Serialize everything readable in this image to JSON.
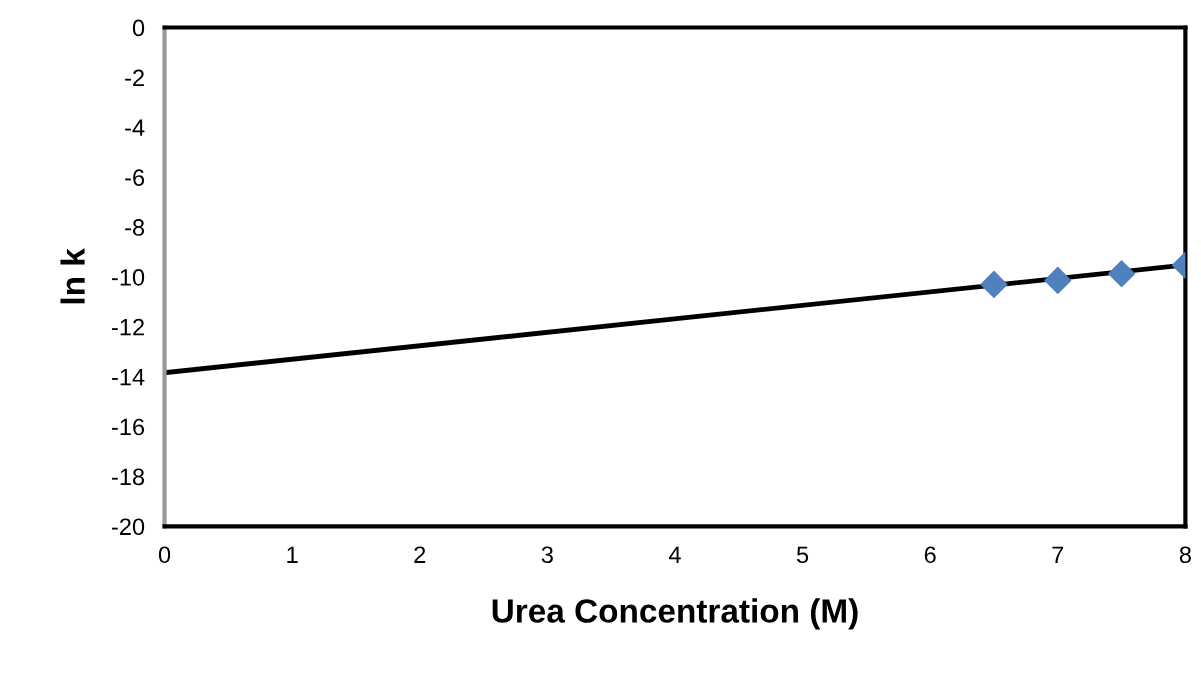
{
  "chart_data": {
    "type": "scatter",
    "xlabel": "Urea Concentration (M)",
    "ylabel": "ln k",
    "series": [
      {
        "color": "#4f81bd",
        "marker": "diamond",
        "x": [
          6.5,
          7,
          7.5,
          8
        ],
        "values": [
          -10.3,
          -10.14,
          -9.87,
          -9.53
        ]
      },
      {
        "type": "line",
        "color": "#000000",
        "marker": "none",
        "line_style": "solid",
        "x": [
          0,
          8
        ],
        "values": [
          -13.84,
          -9.52
        ]
      }
    ],
    "xlim": [
      0,
      8
    ],
    "xticks": [
      0,
      1,
      2,
      3,
      4,
      5,
      6,
      7,
      8
    ],
    "ylim": [
      -20,
      0
    ],
    "yticks": [
      0,
      -2,
      -4,
      -6,
      -8,
      -10,
      -12,
      -14,
      -16,
      -18,
      -20
    ],
    "grid": false,
    "legend": false
  }
}
